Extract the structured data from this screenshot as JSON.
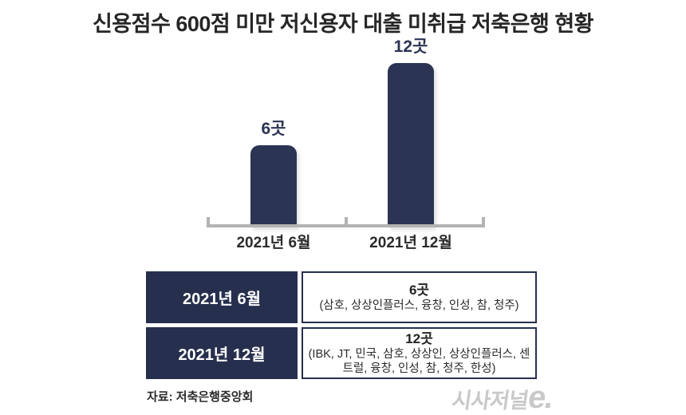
{
  "title": "신용점수 600점 미만 저신용자 대출 미취급 저축은행 현황",
  "chart_data": {
    "type": "bar",
    "title": "신용점수 600점 미만 저신용자 대출 미취급 저축은행 현황",
    "categories": [
      "2021년 6월",
      "2021년 12월"
    ],
    "values": [
      6,
      12
    ],
    "value_labels": [
      "6곳",
      "12곳"
    ],
    "xlabel": "",
    "ylabel": "",
    "ylim": [
      0,
      12
    ],
    "grid": false,
    "legend": "none",
    "bar_color": "#2b3453",
    "axis_color": "#b3b3b3",
    "value_label_color": "#2b3453"
  },
  "table": {
    "rows": [
      {
        "period": "2021년 6월",
        "count": "6곳",
        "banks": "(삼호, 상상인플러스, 융창, 인성, 참, 청주)"
      },
      {
        "period": "2021년 12월",
        "count": "12곳",
        "banks": "(IBK, JT, 민국, 삼호, 상상인, 상상인플러스, 센트럴, 융창, 인성, 참, 청주, 한성)"
      }
    ]
  },
  "source": "자료: 저축은행중앙회",
  "logo": {
    "text": "시사저널",
    "suffix": "e."
  },
  "colors": {
    "bar": "#2b3453",
    "table_header_bg": "#262f4d",
    "table_border": "#262f4d",
    "axis": "#b3b3b3",
    "title_text": "#262626",
    "logo_gray": "#c9c9c9"
  }
}
